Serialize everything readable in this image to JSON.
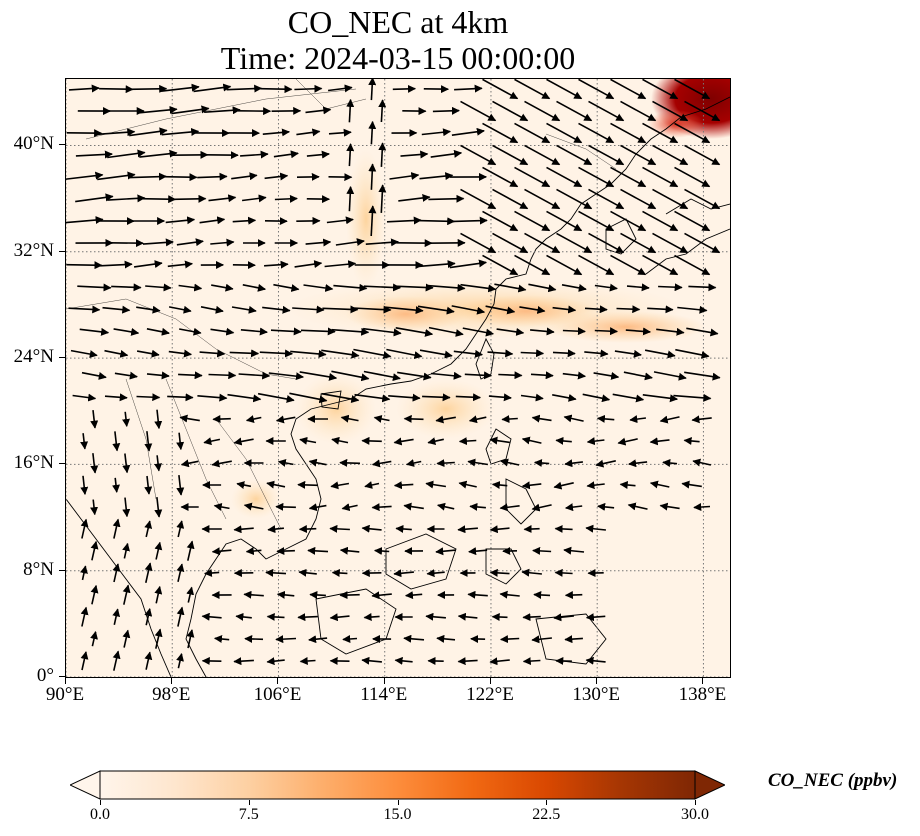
{
  "title": {
    "line1": "CO_NEC at 4km",
    "line2": "Time: 2024-03-15 00:00:00"
  },
  "map": {
    "extent": {
      "lon_min": 90,
      "lon_max": 140,
      "lat_min": 0,
      "lat_max": 45
    },
    "gridlines": true,
    "lon_ticks": [
      "90°E",
      "98°E",
      "106°E",
      "114°E",
      "122°E",
      "130°E",
      "138°E"
    ],
    "lat_ticks": [
      "0°",
      "8°N",
      "16°N",
      "24°N",
      "32°N",
      "40°N"
    ],
    "field": "CO_NEC",
    "hotspots": [
      {
        "lon": 138,
        "lat": 43,
        "value": 30
      },
      {
        "lon": 136,
        "lat": 41.5,
        "value": 24
      },
      {
        "lon": 116,
        "lat": 27.5,
        "value": 10
      },
      {
        "lon": 125,
        "lat": 28,
        "value": 9
      },
      {
        "lon": 134,
        "lat": 25.5,
        "value": 8
      },
      {
        "lon": 110,
        "lat": 19.5,
        "value": 5
      },
      {
        "lon": 104,
        "lat": 13,
        "value": 5
      }
    ]
  },
  "colorbar": {
    "label": "CO_NEC (ppbv)",
    "min": 0,
    "max": 30,
    "ticks": [
      "0.0",
      "7.5",
      "15.0",
      "22.5",
      "30.0"
    ],
    "colors": [
      "#fff5eb",
      "#fee6ce",
      "#fdd0a2",
      "#fdae6b",
      "#fd8d3c",
      "#f16913",
      "#d94801",
      "#a63603",
      "#7f2704"
    ],
    "extend": "both"
  }
}
